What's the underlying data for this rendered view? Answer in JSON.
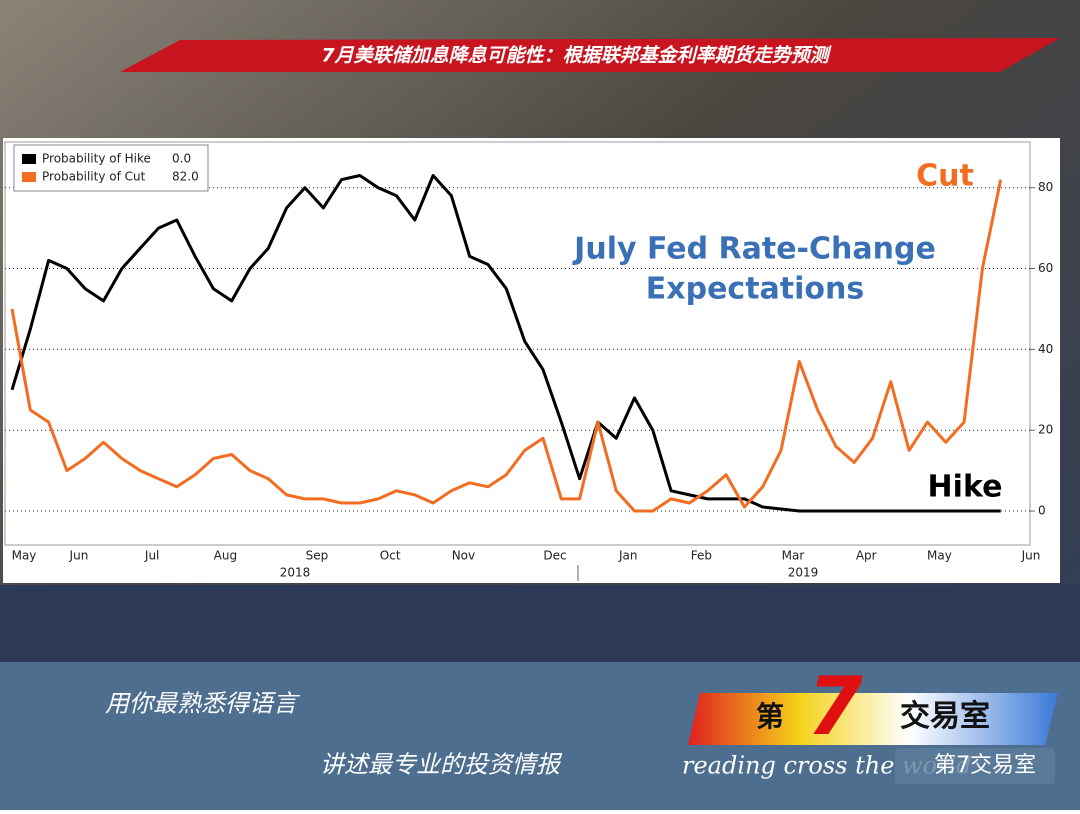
{
  "header": {
    "title": "7月美联储加息降息可能性：根据联邦基金利率期货走势预测"
  },
  "chart_data": {
    "type": "line",
    "title_lines": [
      "July Fed Rate-Change",
      "Expectations"
    ],
    "categories": [
      "May",
      null,
      null,
      "Jun",
      null,
      null,
      null,
      "Jul",
      null,
      null,
      null,
      "Aug",
      null,
      null,
      null,
      null,
      "Sep",
      null,
      null,
      null,
      "Oct",
      null,
      null,
      null,
      "Nov",
      null,
      null,
      null,
      null,
      "Dec",
      null,
      null,
      null,
      "Jan",
      null,
      null,
      null,
      "Feb",
      null,
      null,
      null,
      null,
      "Mar",
      null,
      null,
      null,
      "Apr",
      null,
      null,
      null,
      "May",
      null,
      null,
      null,
      null,
      "Jun"
    ],
    "year_labels": [
      "2018",
      "2019"
    ],
    "series": [
      {
        "name": "Probability of Hike",
        "legend_value": "0.0",
        "color": "#000000",
        "values": [
          30,
          45,
          62,
          60,
          55,
          52,
          60,
          65,
          70,
          72,
          63,
          55,
          52,
          60,
          65,
          75,
          80,
          75,
          82,
          83,
          80,
          78,
          72,
          83,
          78,
          63,
          61,
          55,
          42,
          35,
          22,
          8,
          22,
          18,
          28,
          20,
          5,
          4,
          3,
          3,
          3,
          1,
          0.5,
          0,
          0,
          0,
          0,
          0,
          0,
          0,
          0,
          0,
          0,
          0,
          0,
          null
        ]
      },
      {
        "name": "Probability of Cut",
        "legend_value": "82.0",
        "color": "#f26d21",
        "values": [
          50,
          25,
          22,
          10,
          13,
          17,
          13,
          10,
          8,
          6,
          9,
          13,
          14,
          10,
          8,
          4,
          3,
          3,
          2,
          2,
          3,
          5,
          4,
          2,
          5,
          7,
          6,
          9,
          15,
          18,
          3,
          3,
          22,
          5,
          0,
          0,
          3,
          2,
          5,
          9,
          1,
          6,
          15,
          37,
          25,
          16,
          12,
          18,
          32,
          15,
          22,
          17,
          22,
          60,
          82,
          null
        ]
      }
    ],
    "annotations": [
      "Cut",
      "Hike"
    ],
    "ylim": [
      -8.4,
      91.3
    ],
    "yticks": [
      0,
      20,
      40,
      60,
      80
    ],
    "grid": true,
    "legend": "top-left"
  },
  "footer": {
    "slogan_1": "用你最熟悉得语言",
    "slogan_2": "讲述最专业的投资情报",
    "logo_di": "第",
    "logo_7": "7",
    "logo_name": "交易室",
    "tagline": "reading cross the world",
    "watermark": "第7交易室"
  }
}
